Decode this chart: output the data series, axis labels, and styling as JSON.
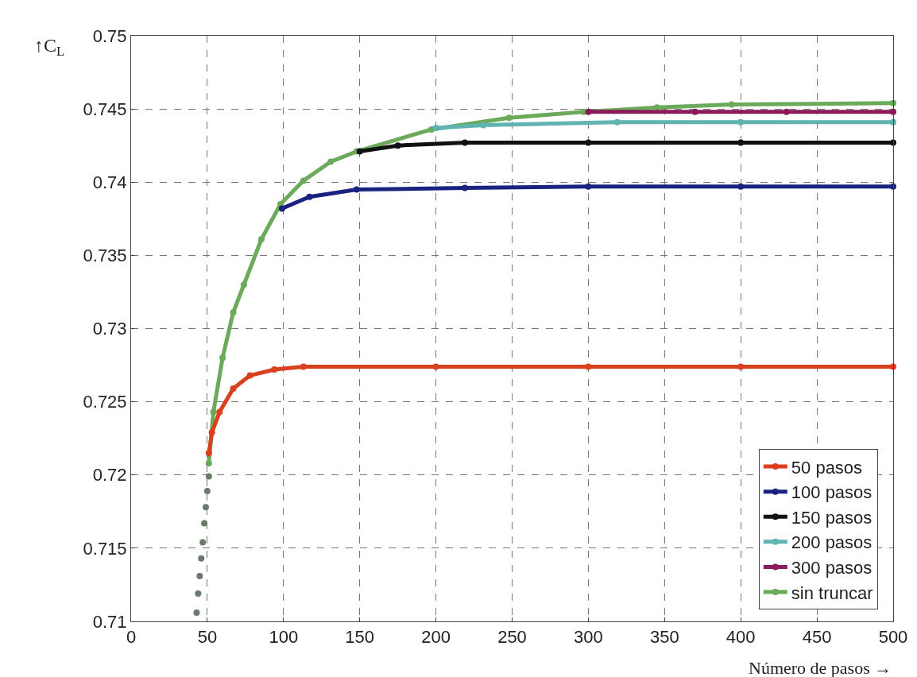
{
  "chart_data": {
    "type": "line",
    "xlabel": "Número de pasos →",
    "ylabel": "↑C$_{L}$",
    "xlim": [
      0,
      500
    ],
    "ylim": [
      0.71,
      0.75
    ],
    "xticks": [
      0,
      50,
      100,
      150,
      200,
      250,
      300,
      350,
      400,
      450,
      500
    ],
    "yticks": [
      0.71,
      0.715,
      0.72,
      0.725,
      0.73,
      0.735,
      0.74,
      0.745,
      0.75
    ],
    "grid": true,
    "legend": "bottom right",
    "marker": "circle",
    "line_style": "solid",
    "series": [
      {
        "name": "50 pasos",
        "color": "#d9401f",
        "x": [
          51,
          53,
          58,
          67,
          78,
          94,
          113,
          200,
          300,
          400,
          500
        ],
        "values": [
          0.7215,
          0.7229,
          0.7243,
          0.7259,
          0.7268,
          0.7272,
          0.7274,
          0.7274,
          0.7274,
          0.7274,
          0.7274
        ]
      },
      {
        "name": "100 pasos",
        "color": "#1a237e",
        "x": [
          99,
          117,
          148,
          219,
          300,
          400,
          500
        ],
        "values": [
          0.7382,
          0.739,
          0.7395,
          0.7396,
          0.7397,
          0.7397,
          0.7397
        ]
      },
      {
        "name": "150 pasos",
        "color": "#111111",
        "x": [
          150,
          175,
          219,
          300,
          400,
          500
        ],
        "values": [
          0.7421,
          0.7425,
          0.7427,
          0.7427,
          0.7427,
          0.7427
        ]
      },
      {
        "name": "200 pasos",
        "color": "#5fb3b0",
        "x": [
          200,
          231,
          319,
          400,
          500
        ],
        "values": [
          0.7437,
          0.7439,
          0.7441,
          0.7441,
          0.7441
        ]
      },
      {
        "name": "300 pasos",
        "color": "#8b1a5a",
        "x": [
          300,
          370,
          430,
          500
        ],
        "values": [
          0.7448,
          0.7448,
          0.7448,
          0.7448
        ]
      },
      {
        "name": "sin truncar",
        "color": "#6aaa5a",
        "x": [
          51,
          54,
          60,
          67,
          74,
          85.5,
          98,
          113,
          131,
          148,
          197,
          248,
          297,
          345,
          394,
          500
        ],
        "values": [
          0.7208,
          0.7243,
          0.728,
          0.7311,
          0.733,
          0.7361,
          0.7385,
          0.7401,
          0.7414,
          0.7421,
          0.7436,
          0.7444,
          0.7448,
          0.7451,
          0.7453,
          0.7454
        ]
      },
      {
        "color": "#6b7b6b",
        "type": "scatter",
        "x": [
          43,
          44,
          45,
          46,
          47,
          48,
          49,
          50,
          51
        ],
        "values": [
          0.7106,
          0.7119,
          0.7131,
          0.7143,
          0.7154,
          0.7167,
          0.7178,
          0.7189,
          0.7199
        ]
      }
    ]
  }
}
